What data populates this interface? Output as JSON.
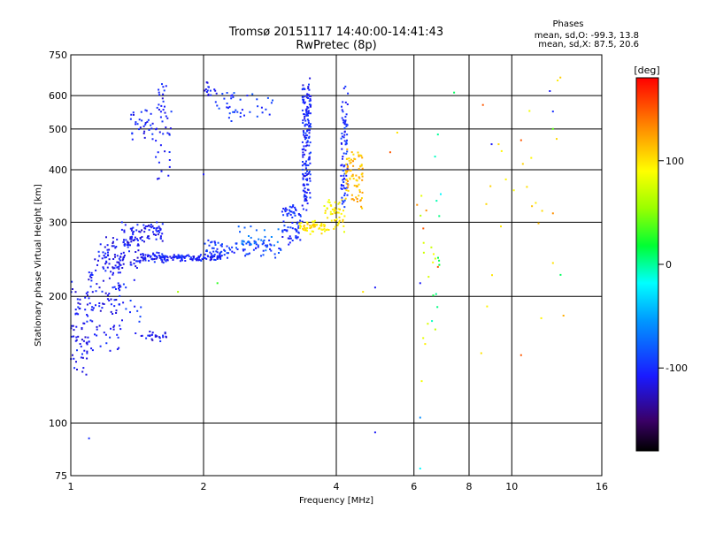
{
  "header": {
    "title_line1": "Tromsø 20151117 14:40:00-14:41:43",
    "title_line2": "RwPretec (8p)"
  },
  "phase_box": {
    "heading": "Phases",
    "line_o": "mean, sd,O: -99.3, 13.8",
    "line_x": "mean, sd,X: 87.5, 20.6"
  },
  "colorbar": {
    "unit": "[deg]",
    "ticks": [
      {
        "value": 100,
        "label": "100"
      },
      {
        "value": 0,
        "label": "0"
      },
      {
        "value": -100,
        "label": "-100"
      }
    ],
    "range": [
      -180,
      180
    ]
  },
  "chart_data": {
    "type": "scatter",
    "title": "Tromsø 20151117 14:40:00-14:41:43",
    "subtitle": "RwPretec (8p)",
    "xlabel": "Frequency [MHz]",
    "ylabel": "Stationary phase Virtual Height [km]",
    "xscale": "log",
    "yscale": "log",
    "xlim": [
      1,
      16
    ],
    "ylim": [
      75,
      750
    ],
    "grid": true,
    "xticks": [
      {
        "value": 1,
        "label": "1"
      },
      {
        "value": 2,
        "label": "2"
      },
      {
        "value": 4,
        "label": "4"
      },
      {
        "value": 6,
        "label": "6"
      },
      {
        "value": 8,
        "label": "8"
      },
      {
        "value": 10,
        "label": "10"
      },
      {
        "value": 16,
        "label": "16"
      }
    ],
    "yticks": [
      {
        "value": 75,
        "label": "75"
      },
      {
        "value": 100,
        "label": "100"
      },
      {
        "value": 200,
        "label": "200"
      },
      {
        "value": 300,
        "label": "300"
      },
      {
        "value": 400,
        "label": "400"
      },
      {
        "value": 500,
        "label": "500"
      },
      {
        "value": 600,
        "label": "600"
      },
      {
        "value": 750,
        "label": "750"
      }
    ],
    "color_by": "phase [deg]",
    "clusters": [
      {
        "f_start": 1.0,
        "f_end": 1.1,
        "h_start": 135,
        "h_end": 215,
        "spread": 0.1,
        "phase": -110,
        "count": 70
      },
      {
        "f_start": 1.1,
        "f_end": 1.3,
        "h_start": 150,
        "h_end": 250,
        "spread": 0.12,
        "phase": -110,
        "count": 90
      },
      {
        "f_start": 1.15,
        "f_end": 1.45,
        "h_start": 235,
        "h_end": 275,
        "spread": 0.06,
        "phase": -112,
        "count": 90
      },
      {
        "f_start": 1.3,
        "f_end": 1.62,
        "h_start": 270,
        "h_end": 295,
        "spread": 0.05,
        "phase": -112,
        "count": 80
      },
      {
        "f_start": 1.45,
        "f_end": 1.65,
        "h_start": 245,
        "h_end": 250,
        "spread": 0.04,
        "phase": -110,
        "count": 50
      },
      {
        "f_start": 1.6,
        "f_end": 2.2,
        "h_start": 245,
        "h_end": 250,
        "spread": 0.02,
        "phase": -108,
        "count": 110
      },
      {
        "f_start": 2.0,
        "f_end": 3.0,
        "h_start": 250,
        "h_end": 270,
        "spread": 0.03,
        "phase": -95,
        "count": 90
      },
      {
        "f_start": 2.4,
        "f_end": 3.0,
        "h_start": 260,
        "h_end": 290,
        "spread": 0.04,
        "phase": -70,
        "count": 25
      },
      {
        "f_start": 3.0,
        "f_end": 3.35,
        "h_start": 270,
        "h_end": 330,
        "spread": 0.05,
        "phase": -100,
        "count": 70
      },
      {
        "f_start": 3.35,
        "f_end": 3.5,
        "h_start": 330,
        "h_end": 630,
        "spread": 0.1,
        "phase": -105,
        "count": 170
      },
      {
        "f_start": 3.3,
        "f_end": 3.8,
        "h_start": 285,
        "h_end": 300,
        "spread": 0.03,
        "phase": 100,
        "count": 55
      },
      {
        "f_start": 3.75,
        "f_end": 4.2,
        "h_start": 290,
        "h_end": 330,
        "spread": 0.06,
        "phase": 95,
        "count": 50
      },
      {
        "f_start": 4.1,
        "f_end": 4.25,
        "h_start": 330,
        "h_end": 620,
        "spread": 0.12,
        "phase": -100,
        "count": 80
      },
      {
        "f_start": 4.2,
        "f_end": 4.6,
        "h_start": 330,
        "h_end": 440,
        "spread": 0.08,
        "phase": 115,
        "count": 80
      },
      {
        "f_start": 1.35,
        "f_end": 1.7,
        "h_start": 480,
        "h_end": 560,
        "spread": 0.07,
        "phase": -105,
        "count": 50
      },
      {
        "f_start": 1.55,
        "f_end": 1.65,
        "h_start": 560,
        "h_end": 630,
        "spread": 0.05,
        "phase": -108,
        "count": 15
      },
      {
        "f_start": 2.0,
        "f_end": 2.15,
        "h_start": 600,
        "h_end": 640,
        "spread": 0.04,
        "phase": -110,
        "count": 15
      },
      {
        "f_start": 2.1,
        "f_end": 2.9,
        "h_start": 520,
        "h_end": 600,
        "spread": 0.06,
        "phase": -95,
        "count": 40
      },
      {
        "f_start": 1.55,
        "f_end": 1.68,
        "h_start": 380,
        "h_end": 450,
        "spread": 0.05,
        "phase": -105,
        "count": 12
      },
      {
        "f_start": 1.4,
        "f_end": 1.65,
        "h_start": 158,
        "h_end": 165,
        "spread": 0.03,
        "phase": -112,
        "count": 25
      },
      {
        "f_start": 1.25,
        "f_end": 1.45,
        "h_start": 175,
        "h_end": 215,
        "spread": 0.07,
        "phase": -100,
        "count": 20
      },
      {
        "f_start": 6.2,
        "f_end": 6.8,
        "h_start": 120,
        "h_end": 370,
        "spread": 0.2,
        "phase": 80,
        "count": 14
      },
      {
        "f_start": 6.5,
        "f_end": 6.9,
        "h_start": 130,
        "h_end": 500,
        "spread": 0.2,
        "phase": 5,
        "count": 10
      },
      {
        "f_start": 8.5,
        "f_end": 13.0,
        "h_start": 140,
        "h_end": 620,
        "spread": 0.25,
        "phase": 100,
        "count": 22
      }
    ],
    "points": [
      {
        "x": 1.1,
        "y": 92,
        "phase": -100
      },
      {
        "x": 4.9,
        "y": 95,
        "phase": -110
      },
      {
        "x": 6.2,
        "y": 78,
        "phase": -20
      },
      {
        "x": 6.2,
        "y": 103,
        "phase": -60
      },
      {
        "x": 4.9,
        "y": 210,
        "phase": -110
      },
      {
        "x": 6.2,
        "y": 215,
        "phase": -110
      },
      {
        "x": 6.1,
        "y": 330,
        "phase": 130
      },
      {
        "x": 6.8,
        "y": 235,
        "phase": 150
      },
      {
        "x": 7.4,
        "y": 610,
        "phase": 10
      },
      {
        "x": 8.6,
        "y": 570,
        "phase": 150
      },
      {
        "x": 9.0,
        "y": 460,
        "phase": -110
      },
      {
        "x": 10.5,
        "y": 470,
        "phase": 150
      },
      {
        "x": 10.5,
        "y": 145,
        "phase": 150
      },
      {
        "x": 12.2,
        "y": 615,
        "phase": -110
      },
      {
        "x": 12.4,
        "y": 550,
        "phase": -100
      },
      {
        "x": 12.4,
        "y": 500,
        "phase": 40
      },
      {
        "x": 12.9,
        "y": 225,
        "phase": 10
      },
      {
        "x": 13.1,
        "y": 180,
        "phase": 120
      },
      {
        "x": 12.4,
        "y": 240,
        "phase": 100
      },
      {
        "x": 12.4,
        "y": 315,
        "phase": 130
      },
      {
        "x": 5.3,
        "y": 440,
        "phase": 150
      },
      {
        "x": 5.5,
        "y": 490,
        "phase": 100
      },
      {
        "x": 6.3,
        "y": 290,
        "phase": 150
      },
      {
        "x": 6.4,
        "y": 320,
        "phase": 130
      },
      {
        "x": 6.9,
        "y": 350,
        "phase": -20
      },
      {
        "x": 6.8,
        "y": 485,
        "phase": 0
      },
      {
        "x": 4.6,
        "y": 205,
        "phase": 100
      },
      {
        "x": 2.0,
        "y": 390,
        "phase": -110
      },
      {
        "x": 1.75,
        "y": 205,
        "phase": 60
      },
      {
        "x": 2.15,
        "y": 215,
        "phase": 30
      }
    ]
  }
}
